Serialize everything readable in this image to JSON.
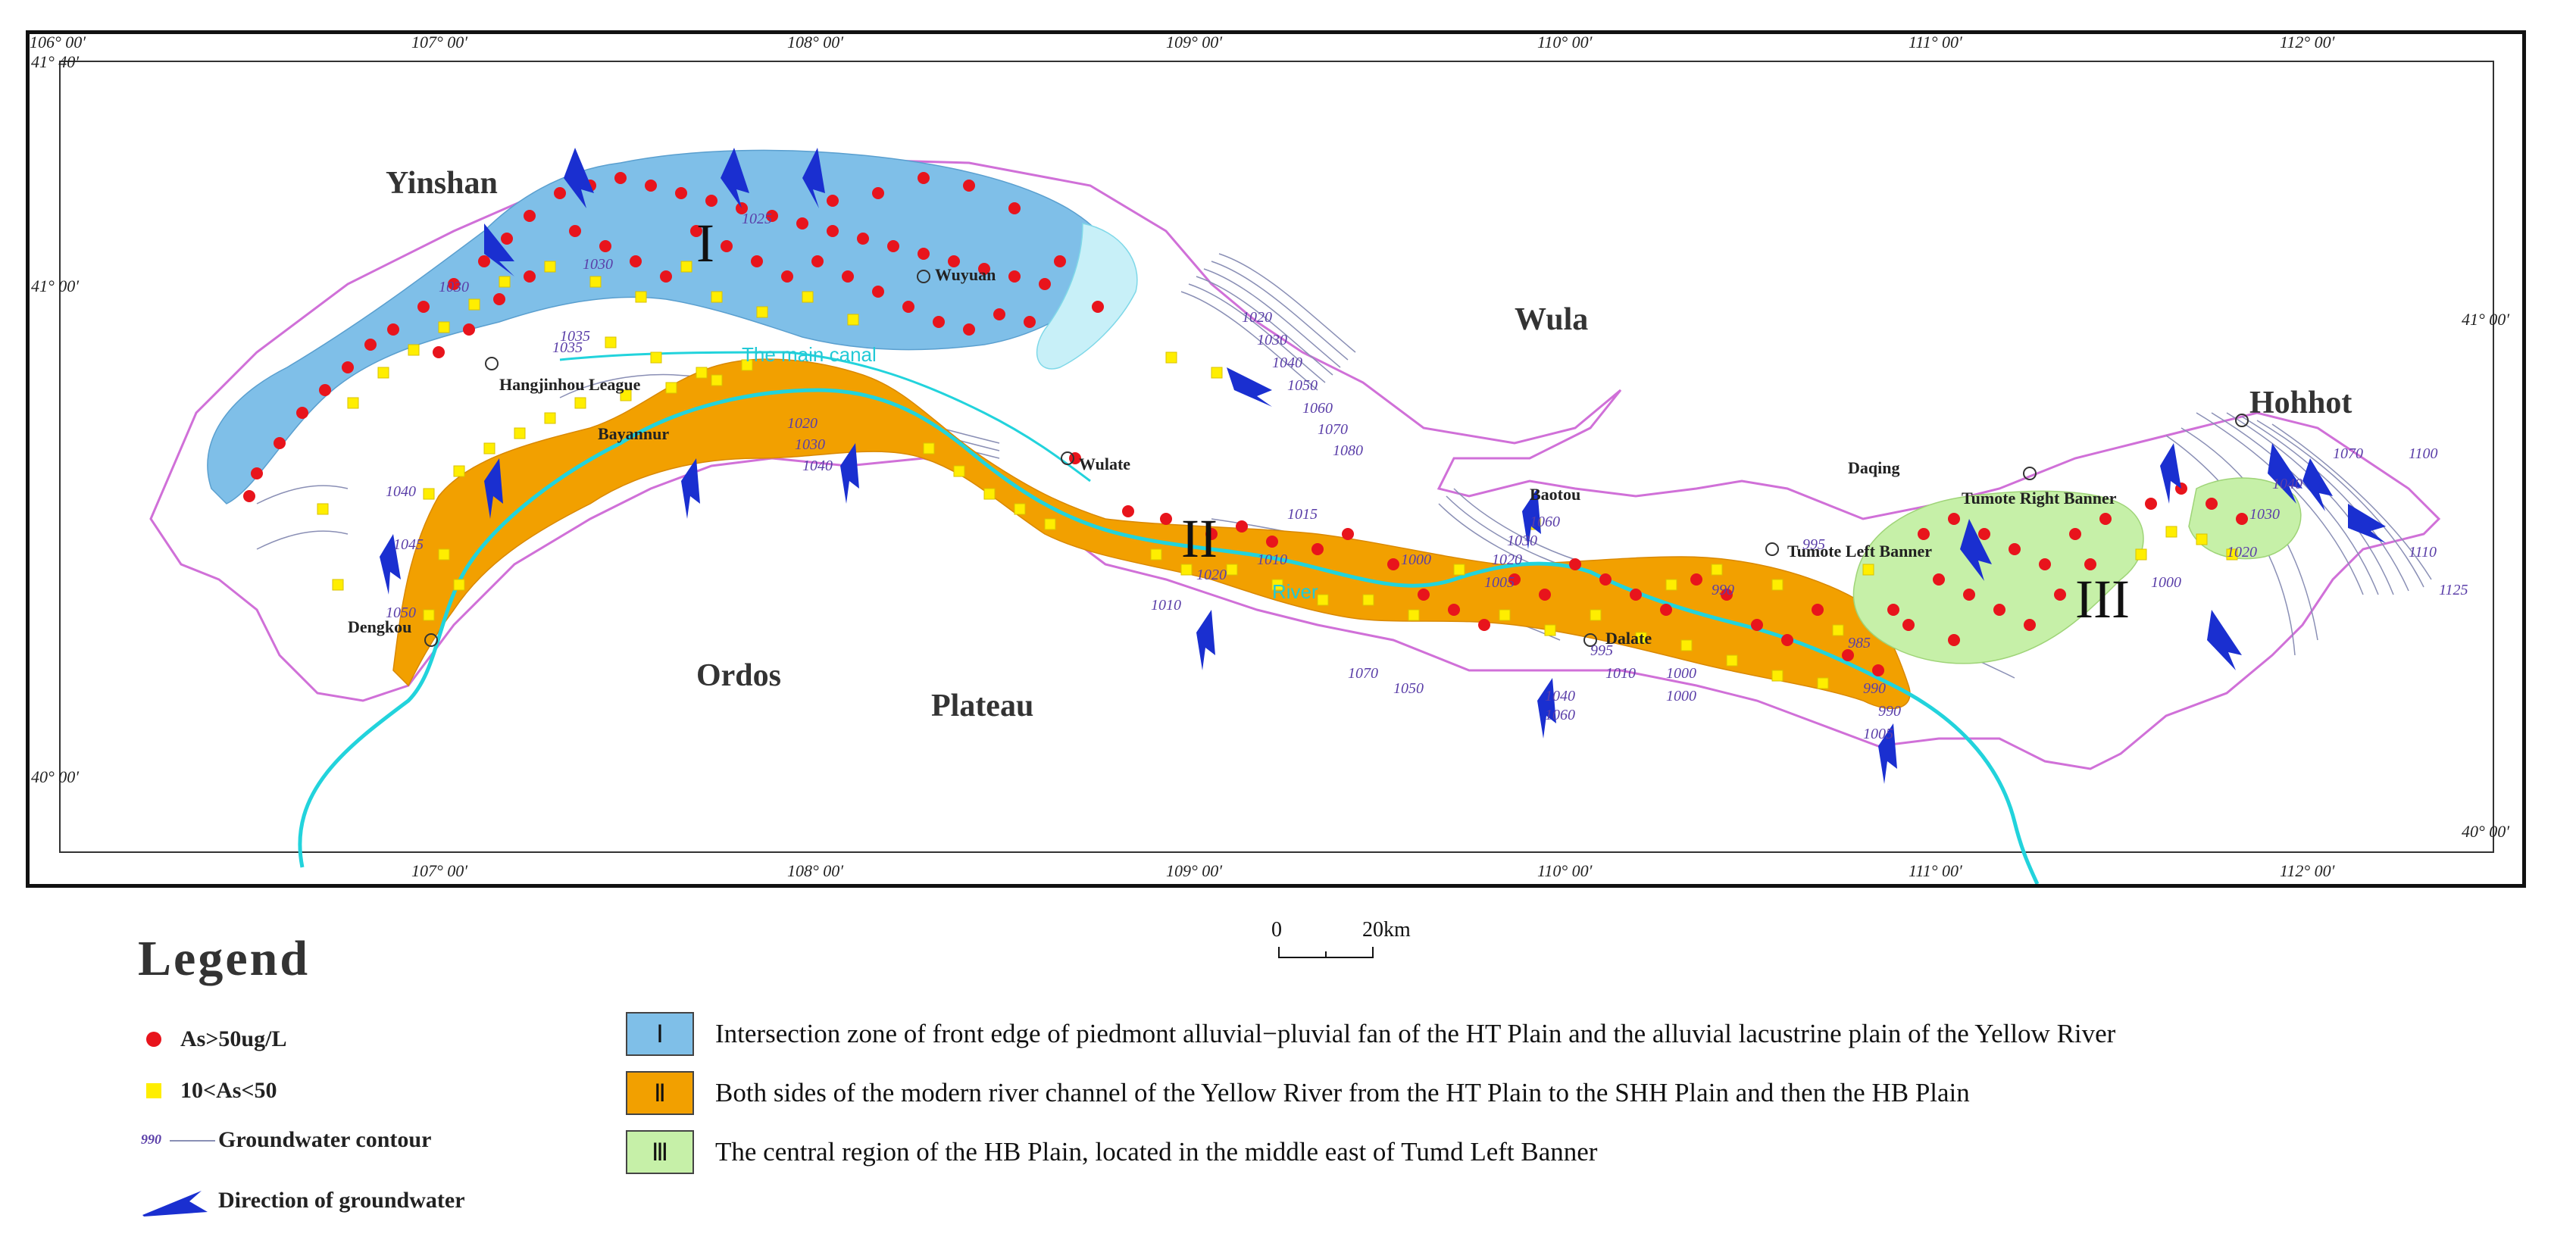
{
  "map": {
    "lon_ticks_top": [
      "106° 00′",
      "107° 00′",
      "108° 00′",
      "109° 00′",
      "110° 00′",
      "111° 00′",
      "112° 00′"
    ],
    "lon_ticks_bottom": [
      "107° 00′",
      "108° 00′",
      "109° 00′",
      "110° 00′",
      "111° 00′",
      "112° 00′"
    ],
    "lat_ticks_left": [
      "41° 40′",
      "41° 00′",
      "40° 00′"
    ],
    "lat_ticks_right": [
      "41° 00′",
      "40° 00′"
    ],
    "regions": {
      "yinshan": "Yinshan",
      "wula": "Wula",
      "ordos": "Ordos",
      "plateau": "Plateau",
      "daqing": "Daqing",
      "hohhot": "Hohhot"
    },
    "towns": {
      "wuyuan": "Wuyuan",
      "hangjinhou": "Hangjinhou League",
      "bayannur": "Bayannur",
      "wulate": "Wulate",
      "baotou": "Baotou",
      "tumote_right": "Tumote Right Banner",
      "tumote_left": "Tumote Left Banner",
      "dalate": "Dalate",
      "dengkou": "Dengkou"
    },
    "water": {
      "main_canal": "The main canal",
      "river": "River"
    },
    "zone_numerals": [
      "I",
      "II",
      "III"
    ],
    "contour_labels": [
      "1025",
      "1030",
      "1035",
      "1030",
      "1035",
      "1040",
      "1045",
      "1050",
      "1020",
      "1030",
      "1040",
      "1020",
      "1030",
      "1040",
      "1050",
      "1060",
      "1070",
      "1080",
      "1015",
      "1010",
      "1020",
      "1010",
      "1000",
      "1005",
      "1060",
      "1020",
      "1030",
      "995",
      "990",
      "985",
      "990",
      "1000",
      "995",
      "1010",
      "1040",
      "1060",
      "1070",
      "1050",
      "1000",
      "990",
      "1005",
      "1000",
      "1020",
      "1030",
      "1040",
      "1070",
      "1100",
      "1110",
      "1125"
    ],
    "colors": {
      "zone1": "#7fbfe8",
      "zone2": "#f2a000",
      "zone3": "#c6f0a8",
      "river": "#22d3dc",
      "boundary": "#d070d8",
      "contour": "#8a8fb5",
      "high_as": "#e8141c",
      "mid_as": "#ffee00",
      "arrow": "#1a2fd0"
    }
  },
  "scale": {
    "zero": "0",
    "distance": "20km"
  },
  "legend": {
    "title": "Legend",
    "items": [
      {
        "symbol": "red-dot-icon",
        "label": "As>50ug/L"
      },
      {
        "symbol": "yellow-square-icon",
        "label": "10<As<50"
      },
      {
        "symbol": "contour-line-icon",
        "sample": "990",
        "label": "Groundwater contour"
      },
      {
        "symbol": "blue-arrow-icon",
        "label": "Direction of groundwater"
      }
    ]
  },
  "zones": [
    {
      "numeral": "Ⅰ",
      "color": "#7fbfe8",
      "text": "Intersection zone of front edge of piedmont alluvial−pluvial fan of the HT Plain and the alluvial lacustrine plain of the Yellow River"
    },
    {
      "numeral": "Ⅱ",
      "color": "#f2a000",
      "text": "Both sides of the modern river channel of the Yellow River from the HT Plain to the SHH Plain and then the HB Plain"
    },
    {
      "numeral": "Ⅲ",
      "color": "#c6f0a8",
      "text": "The central region of the HB Plain,  located in the middle east of Tumd Left Banner"
    }
  ]
}
